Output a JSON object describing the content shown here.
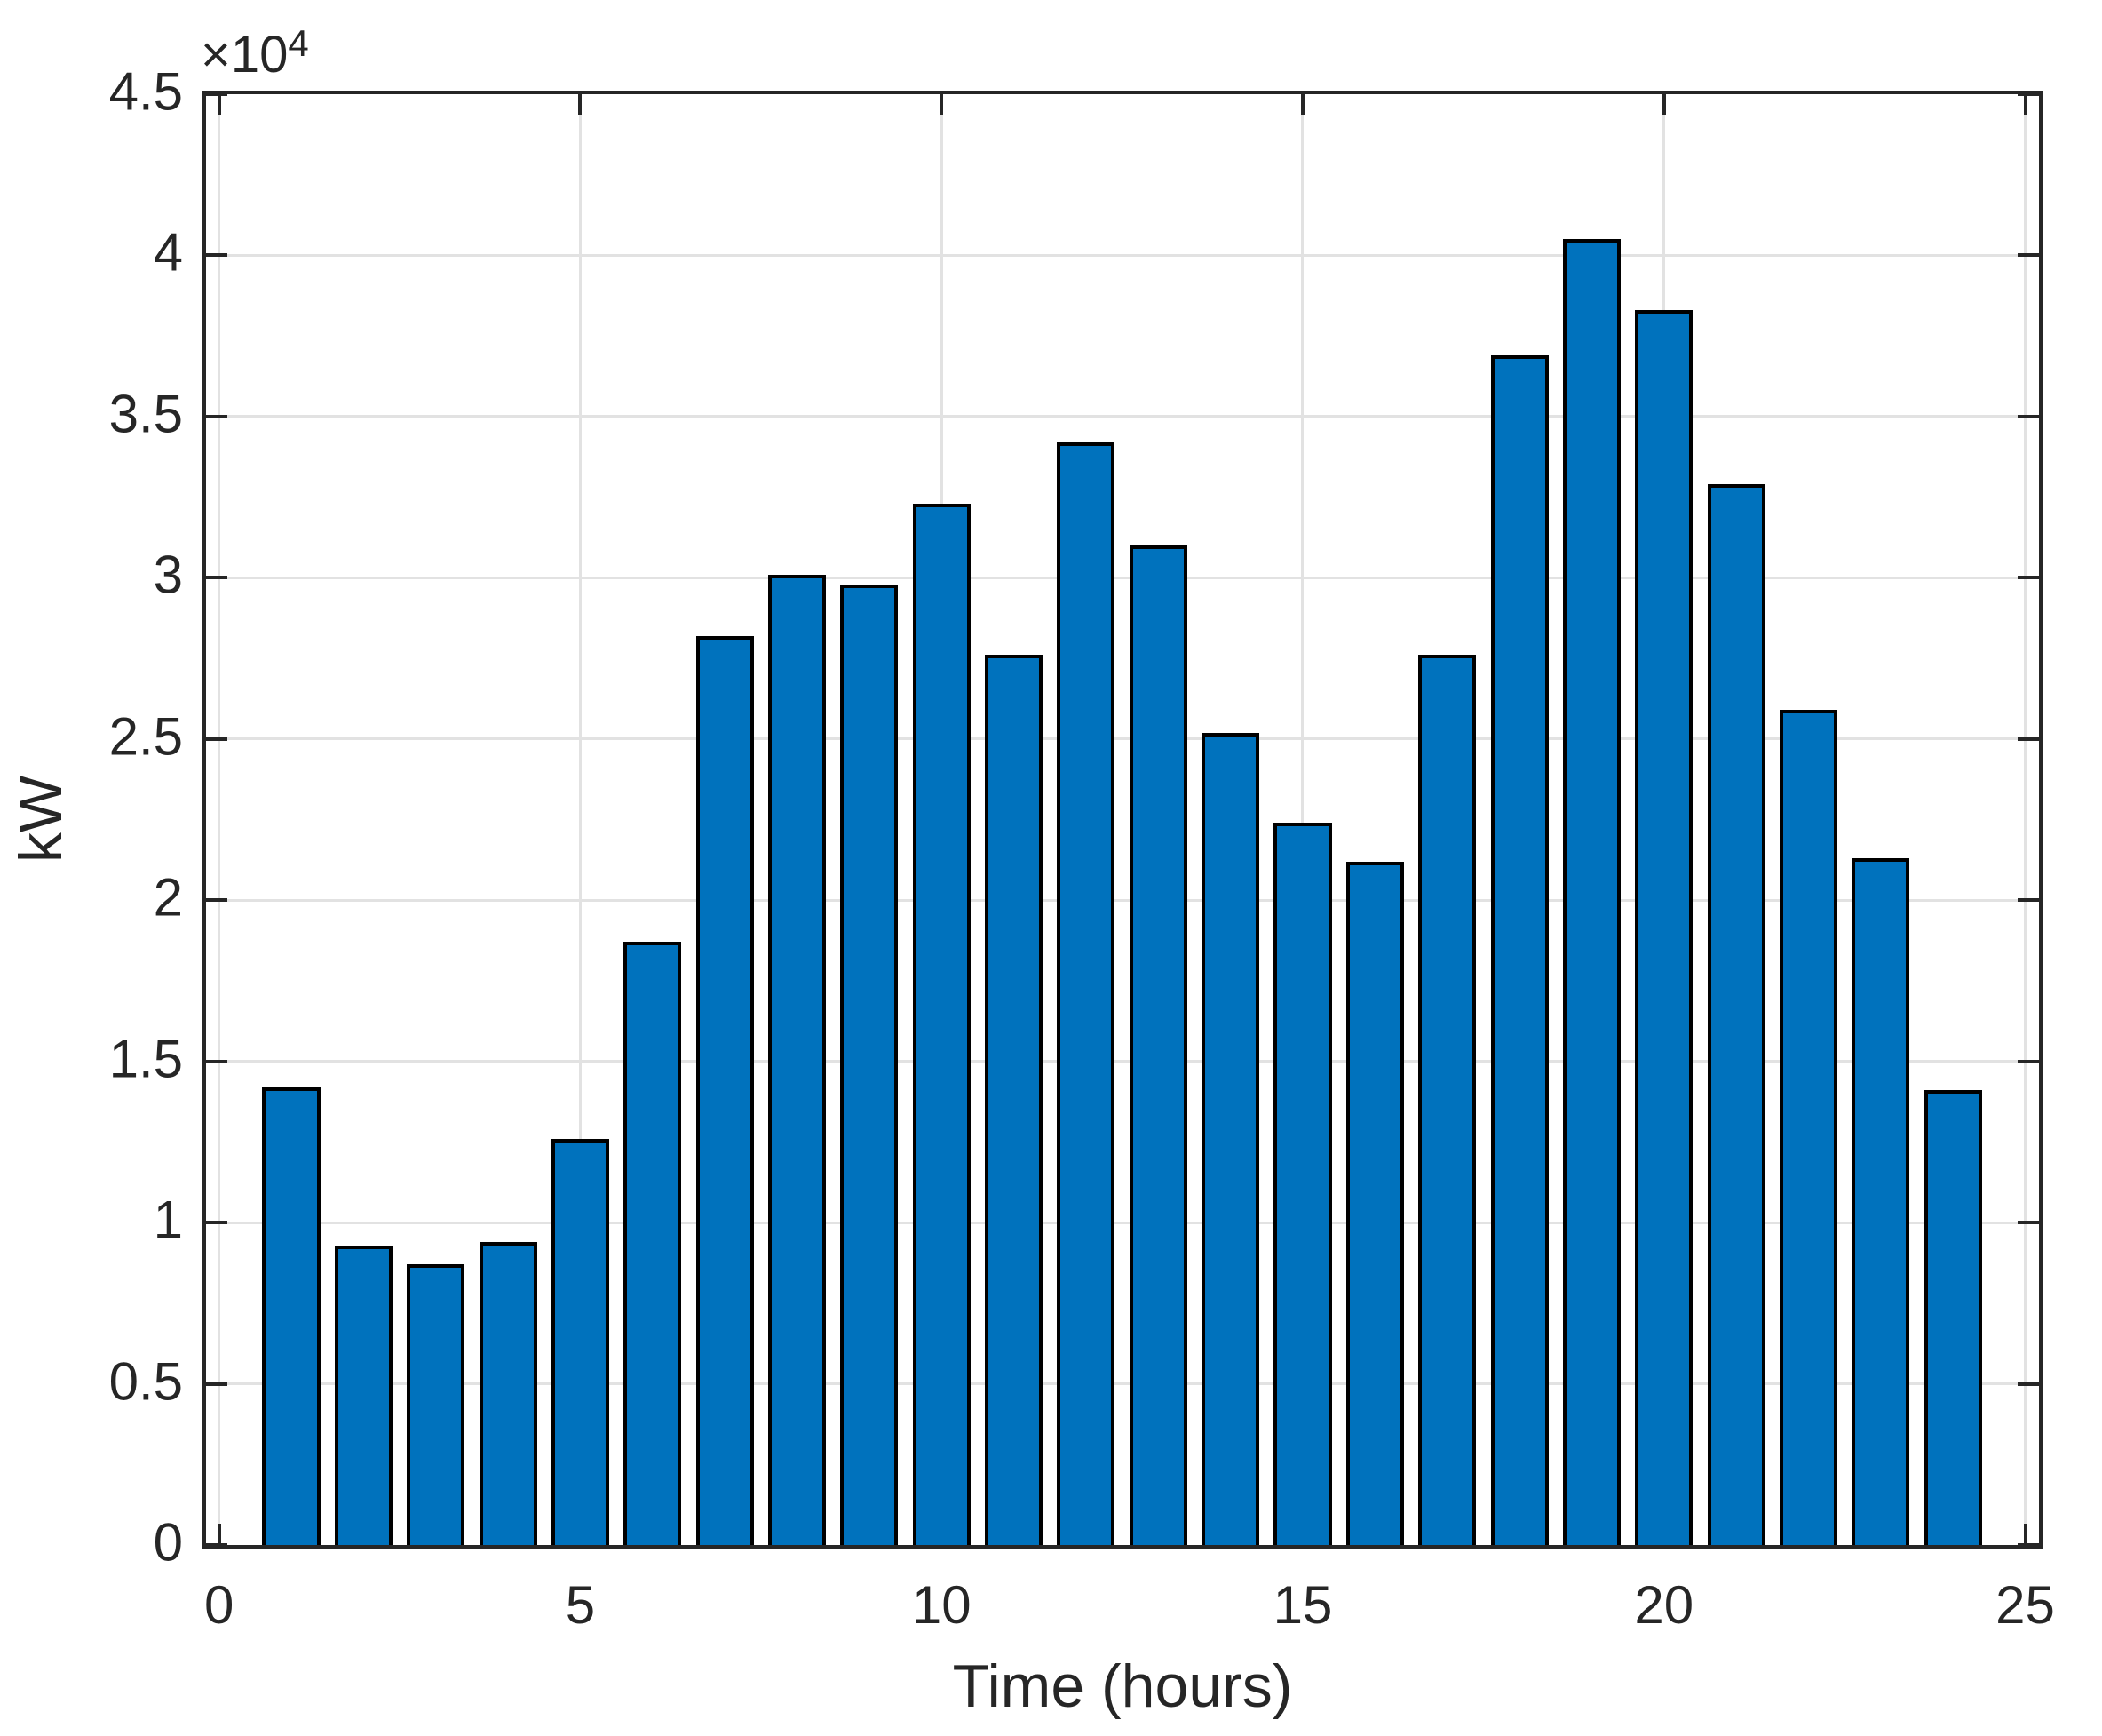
{
  "figure": {
    "y_multiplier_base": "×10",
    "y_multiplier_exp": "4"
  },
  "chart_data": {
    "type": "bar",
    "title": "",
    "xlabel": "Time (hours)",
    "ylabel": "kW",
    "y_axis_multiplier": "×10^4",
    "x": [
      1,
      2,
      3,
      4,
      5,
      6,
      7,
      8,
      9,
      10,
      11,
      12,
      13,
      14,
      15,
      16,
      17,
      18,
      19,
      20,
      21,
      22,
      23,
      24
    ],
    "values": [
      14200,
      9300,
      8700,
      9400,
      12600,
      18700,
      28200,
      30100,
      29800,
      32300,
      27600,
      34200,
      31000,
      25200,
      22400,
      21200,
      27600,
      36900,
      40500,
      38300,
      32900,
      25900,
      21300,
      14100
    ],
    "bar_width": 0.8,
    "xlim": [
      -0.18,
      25.19
    ],
    "ylim": [
      0,
      45000
    ],
    "xticks": [
      0,
      5,
      10,
      15,
      20,
      25
    ],
    "xtick_labels": [
      "0",
      "5",
      "10",
      "15",
      "20",
      "25"
    ],
    "yticks": [
      0,
      5000,
      10000,
      15000,
      20000,
      25000,
      30000,
      35000,
      40000,
      45000
    ],
    "ytick_labels": [
      "0",
      "0.5",
      "1",
      "1.5",
      "2",
      "2.5",
      "3",
      "3.5",
      "4",
      "4.5"
    ],
    "grid": true,
    "legend": null,
    "colors": {
      "bar_fill": "#0072BD",
      "bar_edge": "#000000",
      "grid": "#E2E2E2",
      "axis": "#262626",
      "background": "#FFFFFF"
    }
  }
}
